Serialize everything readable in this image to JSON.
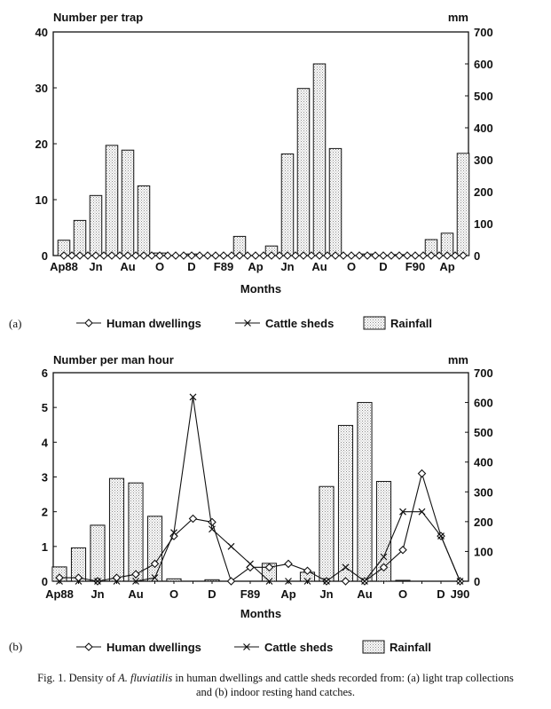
{
  "chart_data": [
    {
      "type": "bar",
      "panel": "(a)",
      "ylabel_left": "Number per trap",
      "ylabel_right": "mm",
      "xlabel": "Months",
      "ylim_left": [
        0,
        40
      ],
      "yticks_left": [
        0,
        10,
        20,
        30,
        40
      ],
      "ylim_right": [
        0,
        700
      ],
      "yticks_right": [
        0,
        100,
        200,
        300,
        400,
        500,
        600,
        700
      ],
      "x_tick_labels": [
        {
          "label": "Ap88",
          "i": 0
        },
        {
          "label": "Jn",
          "i": 2
        },
        {
          "label": "Au",
          "i": 4
        },
        {
          "label": "O",
          "i": 6
        },
        {
          "label": "D",
          "i": 8
        },
        {
          "label": "F89",
          "i": 10
        },
        {
          "label": "Ap",
          "i": 12
        },
        {
          "label": "Jn",
          "i": 14
        },
        {
          "label": "Au",
          "i": 16
        },
        {
          "label": "O",
          "i": 18
        },
        {
          "label": "D",
          "i": 20
        },
        {
          "label": "F90",
          "i": 22
        },
        {
          "label": "Ap",
          "i": 24
        }
      ],
      "bars": {
        "name": "Rainfall",
        "axis": "right",
        "x": [
          0,
          1,
          2,
          3,
          4,
          5,
          6,
          8,
          11,
          13,
          14,
          15,
          16,
          17,
          19,
          21,
          23,
          24,
          25
        ],
        "values": [
          48,
          110,
          188,
          345,
          330,
          218,
          8,
          5,
          60,
          30,
          318,
          523,
          600,
          335,
          5,
          3,
          50,
          70,
          320
        ]
      },
      "series": [
        {
          "name": "Human dwellings",
          "marker": "diamond",
          "axis": "left",
          "x": [
            0,
            0.5,
            1,
            1.5,
            2,
            2.5,
            3,
            3.5,
            4,
            4.5,
            5,
            5.5,
            6,
            6.5,
            7,
            7.5,
            8,
            8.5,
            9,
            9.5,
            10,
            10.5,
            11,
            11.5,
            12,
            12.5,
            13,
            13.5,
            14,
            14.5,
            15,
            15.5,
            16,
            16.5,
            17,
            17.5,
            18,
            18.5,
            19,
            19.5,
            20,
            20.5,
            21,
            21.5,
            22,
            22.5,
            23,
            23.5,
            24,
            24.5,
            25
          ],
          "values": [
            0,
            0,
            0,
            0,
            0,
            0,
            0,
            0,
            0,
            0,
            0,
            0,
            0,
            0,
            0,
            0,
            0,
            0,
            0,
            0,
            0,
            0,
            0,
            0,
            0,
            0,
            0,
            0,
            0,
            0,
            0,
            0,
            0,
            0,
            0,
            0,
            0,
            0,
            0,
            0,
            0,
            0,
            0,
            0,
            0,
            0,
            0,
            0,
            0,
            0,
            0
          ]
        },
        {
          "name": "Cattle sheds",
          "marker": "x",
          "axis": "left",
          "x": [],
          "values": []
        }
      ]
    },
    {
      "type": "bar",
      "panel": "(b)",
      "ylabel_left": "Number per man hour",
      "ylabel_right": "mm",
      "xlabel": "Months",
      "ylim_left": [
        0,
        6
      ],
      "yticks_left": [
        0,
        1,
        2,
        3,
        4,
        5,
        6
      ],
      "ylim_right": [
        0,
        700
      ],
      "yticks_right": [
        0,
        100,
        200,
        300,
        400,
        500,
        600,
        700
      ],
      "x_tick_labels": [
        {
          "label": "Ap88",
          "i": 0
        },
        {
          "label": "Jn",
          "i": 2
        },
        {
          "label": "Au",
          "i": 4
        },
        {
          "label": "O",
          "i": 6
        },
        {
          "label": "D",
          "i": 8
        },
        {
          "label": "F89",
          "i": 10
        },
        {
          "label": "Ap",
          "i": 12
        },
        {
          "label": "Jn",
          "i": 14
        },
        {
          "label": "Au",
          "i": 16
        },
        {
          "label": "O",
          "i": 18
        },
        {
          "label": "D",
          "i": 20
        },
        {
          "label": "J90",
          "i": 21
        }
      ],
      "bars": {
        "name": "Rainfall",
        "axis": "right",
        "x": [
          0,
          1,
          2,
          3,
          4,
          5,
          6,
          8,
          11,
          13,
          14,
          15,
          16,
          17,
          18
        ],
        "values": [
          48,
          112,
          188,
          345,
          330,
          218,
          8,
          5,
          60,
          30,
          318,
          523,
          600,
          335,
          3
        ]
      },
      "series": [
        {
          "name": "Human dwellings",
          "marker": "diamond",
          "axis": "left",
          "x": [
            0,
            1,
            2,
            3,
            4,
            5,
            6,
            7,
            8,
            9,
            10,
            11,
            12,
            13,
            14,
            15,
            16,
            17,
            18,
            19,
            20,
            21
          ],
          "values": [
            0.1,
            0.1,
            0.0,
            0.1,
            0.2,
            0.5,
            1.3,
            1.8,
            1.7,
            0.0,
            0.4,
            0.4,
            0.5,
            0.3,
            0.0,
            0.0,
            0.0,
            0.4,
            0.9,
            3.1,
            1.3,
            0.0
          ]
        },
        {
          "name": "Cattle sheds",
          "marker": "x",
          "axis": "left",
          "x": [
            0,
            1,
            2,
            3,
            4,
            5,
            6,
            7,
            8,
            9,
            10,
            11,
            12,
            13,
            14,
            15,
            16,
            17,
            18,
            19,
            20,
            21
          ],
          "values": [
            0.0,
            0.0,
            0.0,
            0.0,
            0.0,
            0.1,
            1.4,
            5.3,
            1.5,
            1.0,
            0.5,
            0.0,
            0.0,
            0.0,
            0.0,
            0.4,
            0.0,
            0.7,
            2.0,
            2.0,
            1.3,
            0.0
          ]
        }
      ]
    }
  ],
  "caption": {
    "prefix": "Fig. 1.  Density of ",
    "species": "A. fluviatilis",
    "line1_rest": " in human dwellings and cattle sheds recorded from: (a) light trap collections",
    "line2": "and (b) indoor resting hand catches."
  }
}
